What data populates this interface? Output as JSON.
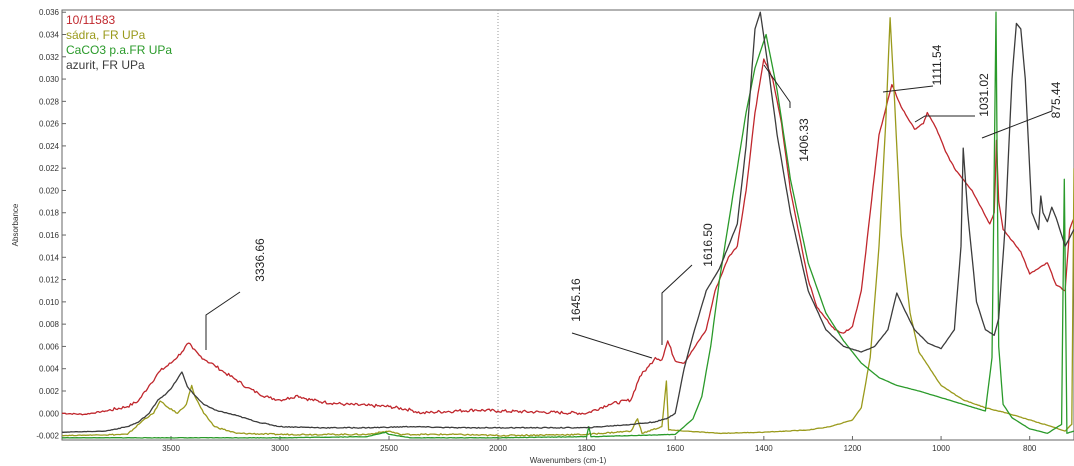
{
  "chart_data": {
    "type": "line",
    "xlabel": "Wavenumbers (cm-1)",
    "ylabel": "Absorbance",
    "xlim": [
      4000,
      700
    ],
    "ylim": [
      -0.0024,
      0.0362
    ],
    "x_ticks": [
      3500,
      3000,
      2500,
      2000,
      1800,
      1600,
      1400,
      1200,
      1000,
      800
    ],
    "x_tick_labels": [
      "3500",
      "3000",
      "2500",
      "2000",
      "1800",
      "1600",
      "1400",
      "1200",
      "1000",
      "800"
    ],
    "y_ticks": [
      -0.002,
      0.0,
      0.002,
      0.004,
      0.006,
      0.008,
      0.01,
      0.012,
      0.014,
      0.016,
      0.018,
      0.02,
      0.022,
      0.024,
      0.026,
      0.028,
      0.03,
      0.032,
      0.034,
      0.036
    ],
    "y_tick_labels": [
      "-0.002",
      "0.000",
      "0.002",
      "0.004",
      "0.006",
      "0.008",
      "0.010",
      "0.012",
      "0.014",
      "0.016",
      "0.018",
      "0.020",
      "0.022",
      "0.024",
      "0.026",
      "0.028",
      "0.030",
      "0.032",
      "0.034",
      "0.036"
    ],
    "legend_position": "top-left",
    "series": [
      {
        "name": "10/11583",
        "color": "#c0272d",
        "points": [
          [
            4000,
            0.0
          ],
          [
            3900,
            -0.0001
          ],
          [
            3800,
            0.0002
          ],
          [
            3700,
            0.0006
          ],
          [
            3650,
            0.0011
          ],
          [
            3600,
            0.0025
          ],
          [
            3550,
            0.0038
          ],
          [
            3500,
            0.0045
          ],
          [
            3450,
            0.0055
          ],
          [
            3420,
            0.0063
          ],
          [
            3400,
            0.0058
          ],
          [
            3370,
            0.0052
          ],
          [
            3336,
            0.0047
          ],
          [
            3300,
            0.0043
          ],
          [
            3250,
            0.0036
          ],
          [
            3200,
            0.003
          ],
          [
            3150,
            0.0023
          ],
          [
            3100,
            0.0018
          ],
          [
            3050,
            0.0014
          ],
          [
            3000,
            0.0012
          ],
          [
            2950,
            0.0014
          ],
          [
            2920,
            0.0016
          ],
          [
            2880,
            0.0013
          ],
          [
            2800,
            0.001
          ],
          [
            2700,
            0.0008
          ],
          [
            2600,
            0.0007
          ],
          [
            2500,
            0.0006
          ],
          [
            2400,
            0.0003
          ],
          [
            2350,
            0.0
          ],
          [
            2300,
            0.0001
          ],
          [
            2200,
            0.0002
          ],
          [
            2100,
            0.0003
          ],
          [
            2000,
            0.0002
          ],
          [
            1900,
            0.0001
          ],
          [
            1800,
            0.0
          ],
          [
            1750,
            0.0008
          ],
          [
            1700,
            0.0012
          ],
          [
            1680,
            0.0033
          ],
          [
            1660,
            0.0042
          ],
          [
            1645,
            0.005
          ],
          [
            1630,
            0.0048
          ],
          [
            1617,
            0.0065
          ],
          [
            1600,
            0.0047
          ],
          [
            1580,
            0.0045
          ],
          [
            1560,
            0.0057
          ],
          [
            1530,
            0.0075
          ],
          [
            1510,
            0.011
          ],
          [
            1480,
            0.014
          ],
          [
            1460,
            0.015
          ],
          [
            1440,
            0.02
          ],
          [
            1420,
            0.027
          ],
          [
            1400,
            0.0318
          ],
          [
            1380,
            0.03
          ],
          [
            1360,
            0.026
          ],
          [
            1340,
            0.02
          ],
          [
            1320,
            0.016
          ],
          [
            1300,
            0.012
          ],
          [
            1280,
            0.0095
          ],
          [
            1260,
            0.0085
          ],
          [
            1240,
            0.0075
          ],
          [
            1220,
            0.0072
          ],
          [
            1200,
            0.0078
          ],
          [
            1180,
            0.011
          ],
          [
            1160,
            0.018
          ],
          [
            1140,
            0.025
          ],
          [
            1111,
            0.0295
          ],
          [
            1090,
            0.0275
          ],
          [
            1060,
            0.0255
          ],
          [
            1040,
            0.026
          ],
          [
            1031,
            0.027
          ],
          [
            1010,
            0.0255
          ],
          [
            990,
            0.0235
          ],
          [
            970,
            0.022
          ],
          [
            950,
            0.021
          ],
          [
            930,
            0.02
          ],
          [
            910,
            0.0185
          ],
          [
            890,
            0.017
          ],
          [
            880,
            0.018
          ],
          [
            875,
            0.0245
          ],
          [
            870,
            0.019
          ],
          [
            860,
            0.0165
          ],
          [
            840,
            0.0155
          ],
          [
            820,
            0.0145
          ],
          [
            800,
            0.0125
          ],
          [
            780,
            0.013
          ],
          [
            760,
            0.0135
          ],
          [
            740,
            0.0115
          ],
          [
            720,
            0.011
          ],
          [
            710,
            0.0165
          ],
          [
            700,
            0.0175
          ]
        ]
      },
      {
        "name": "sádra, FR UPa",
        "color": "#9a9a1c",
        "points": [
          [
            4000,
            -0.002
          ],
          [
            3700,
            -0.0019
          ],
          [
            3620,
            -0.0005
          ],
          [
            3580,
            0.0
          ],
          [
            3550,
            0.0011
          ],
          [
            3520,
            0.0006
          ],
          [
            3470,
            0.0
          ],
          [
            3430,
            0.0008
          ],
          [
            3405,
            0.0025
          ],
          [
            3390,
            0.0015
          ],
          [
            3350,
            0.0
          ],
          [
            3300,
            -0.0012
          ],
          [
            3200,
            -0.0018
          ],
          [
            3000,
            -0.0019
          ],
          [
            2800,
            -0.0019
          ],
          [
            2600,
            -0.0019
          ],
          [
            2500,
            -0.0016
          ],
          [
            2450,
            -0.0019
          ],
          [
            2200,
            -0.0019
          ],
          [
            2000,
            -0.002
          ],
          [
            1800,
            -0.0019
          ],
          [
            1700,
            -0.0016
          ],
          [
            1685,
            -0.0005
          ],
          [
            1675,
            -0.0018
          ],
          [
            1630,
            -0.0012
          ],
          [
            1620,
            0.0029
          ],
          [
            1615,
            -0.0015
          ],
          [
            1500,
            -0.0018
          ],
          [
            1400,
            -0.0017
          ],
          [
            1300,
            -0.0015
          ],
          [
            1250,
            -0.0012
          ],
          [
            1200,
            -0.0006
          ],
          [
            1180,
            0.0005
          ],
          [
            1160,
            0.005
          ],
          [
            1140,
            0.015
          ],
          [
            1125,
            0.026
          ],
          [
            1115,
            0.0355
          ],
          [
            1105,
            0.028
          ],
          [
            1090,
            0.016
          ],
          [
            1070,
            0.009
          ],
          [
            1050,
            0.0055
          ],
          [
            1000,
            0.0025
          ],
          [
            950,
            0.0012
          ],
          [
            900,
            0.0005
          ],
          [
            850,
            0.0
          ],
          [
            800,
            -0.0006
          ],
          [
            750,
            -0.0012
          ],
          [
            720,
            -0.0016
          ],
          [
            705,
            -0.001
          ],
          [
            700,
            0.022
          ]
        ]
      },
      {
        "name": "CaCO3 p.a.FR UPa",
        "color": "#2a9a2a",
        "points": [
          [
            4000,
            -0.0022
          ],
          [
            3500,
            -0.0022
          ],
          [
            3000,
            -0.0022
          ],
          [
            2600,
            -0.0021
          ],
          [
            2515,
            -0.0017
          ],
          [
            2500,
            -0.0019
          ],
          [
            2400,
            -0.0022
          ],
          [
            2000,
            -0.0022
          ],
          [
            1800,
            -0.0021
          ],
          [
            1795,
            -0.0012
          ],
          [
            1790,
            -0.0021
          ],
          [
            1600,
            -0.0019
          ],
          [
            1560,
            -0.0005
          ],
          [
            1540,
            0.0015
          ],
          [
            1520,
            0.006
          ],
          [
            1500,
            0.012
          ],
          [
            1480,
            0.017
          ],
          [
            1460,
            0.022
          ],
          [
            1440,
            0.027
          ],
          [
            1420,
            0.031
          ],
          [
            1395,
            0.034
          ],
          [
            1370,
            0.029
          ],
          [
            1340,
            0.021
          ],
          [
            1300,
            0.0135
          ],
          [
            1260,
            0.009
          ],
          [
            1220,
            0.0065
          ],
          [
            1180,
            0.0045
          ],
          [
            1140,
            0.0032
          ],
          [
            1100,
            0.0025
          ],
          [
            1050,
            0.002
          ],
          [
            1000,
            0.0014
          ],
          [
            950,
            0.0008
          ],
          [
            900,
            0.0002
          ],
          [
            885,
            0.005
          ],
          [
            876,
            0.036
          ],
          [
            870,
            0.006
          ],
          [
            860,
            0.0008
          ],
          [
            840,
            -0.0004
          ],
          [
            800,
            -0.0014
          ],
          [
            760,
            -0.0018
          ],
          [
            728,
            -0.001
          ],
          [
            722,
            0.021
          ],
          [
            716,
            -0.0018
          ],
          [
            700,
            -0.0016
          ]
        ]
      },
      {
        "name": "azurit, FR UPa",
        "color": "#3c3c3c",
        "points": [
          [
            4000,
            -0.0017
          ],
          [
            3800,
            -0.0016
          ],
          [
            3700,
            -0.0012
          ],
          [
            3650,
            -0.0008
          ],
          [
            3600,
            0.0
          ],
          [
            3560,
            0.0012
          ],
          [
            3520,
            0.0018
          ],
          [
            3500,
            0.0022
          ],
          [
            3450,
            0.0037
          ],
          [
            3425,
            0.0024
          ],
          [
            3400,
            0.0018
          ],
          [
            3350,
            0.0008
          ],
          [
            3300,
            0.0003
          ],
          [
            3200,
            -0.0002
          ],
          [
            3100,
            -0.0008
          ],
          [
            3000,
            -0.0012
          ],
          [
            2800,
            -0.0013
          ],
          [
            2600,
            -0.0013
          ],
          [
            2400,
            -0.0012
          ],
          [
            2200,
            -0.0013
          ],
          [
            2000,
            -0.0013
          ],
          [
            1800,
            -0.0013
          ],
          [
            1700,
            -0.001
          ],
          [
            1650,
            -0.0008
          ],
          [
            1620,
            -0.0005
          ],
          [
            1600,
            0.0
          ],
          [
            1580,
            0.004
          ],
          [
            1560,
            0.007
          ],
          [
            1530,
            0.011
          ],
          [
            1500,
            0.013
          ],
          [
            1480,
            0.015
          ],
          [
            1460,
            0.017
          ],
          [
            1440,
            0.024
          ],
          [
            1420,
            0.0345
          ],
          [
            1408,
            0.036
          ],
          [
            1390,
            0.031
          ],
          [
            1370,
            0.025
          ],
          [
            1340,
            0.018
          ],
          [
            1300,
            0.011
          ],
          [
            1260,
            0.0075
          ],
          [
            1220,
            0.006
          ],
          [
            1180,
            0.0055
          ],
          [
            1150,
            0.006
          ],
          [
            1120,
            0.0075
          ],
          [
            1100,
            0.0108
          ],
          [
            1085,
            0.0095
          ],
          [
            1060,
            0.0075
          ],
          [
            1030,
            0.0063
          ],
          [
            1000,
            0.0058
          ],
          [
            970,
            0.0075
          ],
          [
            955,
            0.015
          ],
          [
            950,
            0.0238
          ],
          [
            940,
            0.018
          ],
          [
            920,
            0.01
          ],
          [
            900,
            0.0075
          ],
          [
            880,
            0.007
          ],
          [
            870,
            0.0085
          ],
          [
            855,
            0.017
          ],
          [
            840,
            0.03
          ],
          [
            830,
            0.035
          ],
          [
            820,
            0.0345
          ],
          [
            810,
            0.03
          ],
          [
            795,
            0.018
          ],
          [
            780,
            0.0165
          ],
          [
            775,
            0.0195
          ],
          [
            770,
            0.018
          ],
          [
            760,
            0.0172
          ],
          [
            750,
            0.0185
          ],
          [
            740,
            0.0175
          ],
          [
            720,
            0.015
          ],
          [
            700,
            0.0165
          ]
        ]
      }
    ],
    "peak_labels": [
      {
        "text": "3336.66",
        "x": 3336.66
      },
      {
        "text": "1645.16",
        "x": 1645.16
      },
      {
        "text": "1616.50",
        "x": 1616.5
      },
      {
        "text": "1406.33",
        "x": 1406.33
      },
      {
        "text": "1111.54",
        "x": 1111.54
      },
      {
        "text": "1031.02",
        "x": 1031.02
      },
      {
        "text": "875.44",
        "x": 875.44
      }
    ]
  }
}
